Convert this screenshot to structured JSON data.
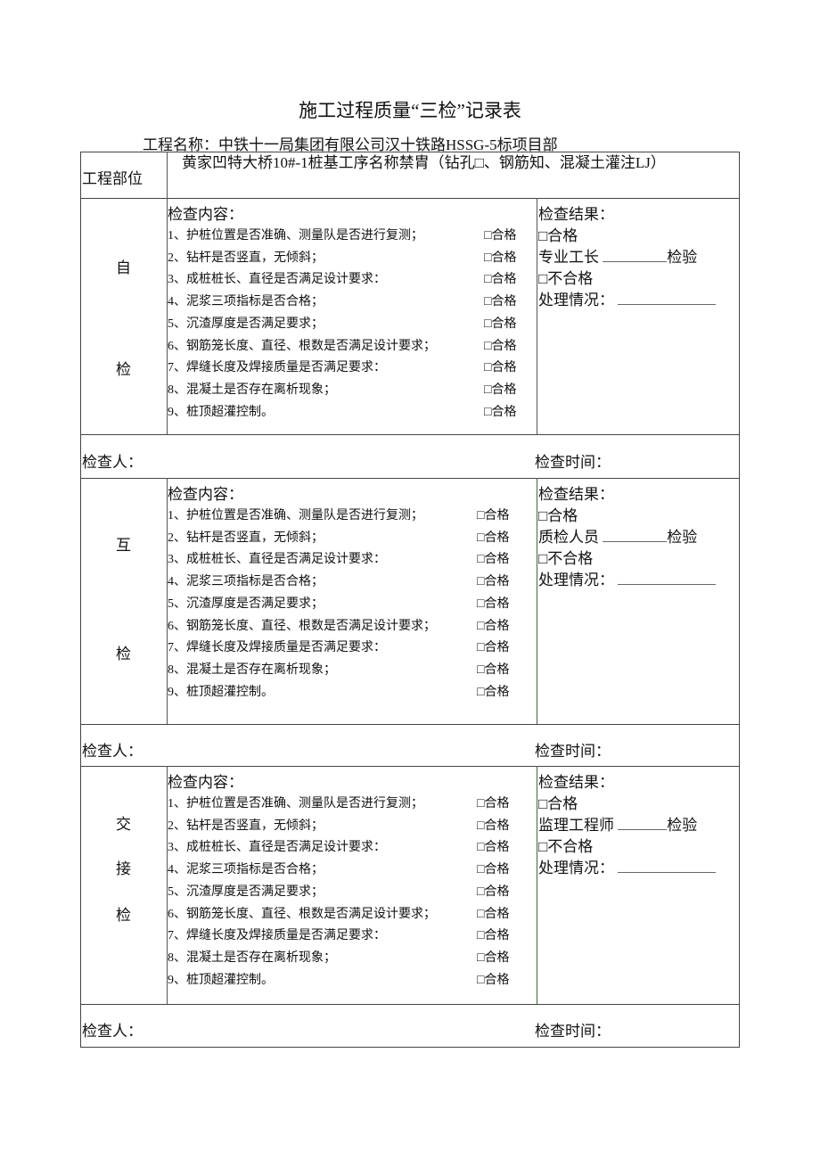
{
  "title": "施工过程质量“三检”记录表",
  "project_name": "工程名称：中铁十一局集团有限公司汉十铁路HSSG-5标项目部",
  "part_label": "工程部位",
  "part_value": "黄家凹特大桥10#-1桩基工序名称禁胄（钻孔□、钢筋知、混凝土灌注LJ）",
  "content_label": "检查内容：",
  "pass_label": "□合格",
  "items": [
    "1、护桩位置是否准确、测量队是否进行复测；",
    "2、钻杆是否竖直，无倾斜；",
    "3、成桩桩长、直径是否满足设计要求：",
    "4、泥浆三项指标是否合格；",
    "5、沉渣厚度是否满足要求；",
    "6、钢筋笼长度、直径、根数是否满足设计要求；",
    "7、焊缝长度及焊接质量是否满足要求：",
    "8、混凝土是否存在离析现象；",
    "9、桩顶超灌控制。"
  ],
  "result_label": "检查结果：",
  "result_pass": "□合格",
  "result_fail": "□不合格",
  "verify": "检验",
  "handling": "处理情况：",
  "inspector": "检查人：",
  "inspect_time": "检查时间：",
  "sections": [
    {
      "chars": [
        "自",
        "检"
      ],
      "role": "专业工长"
    },
    {
      "chars": [
        "互",
        "检"
      ],
      "role": "质检人员"
    },
    {
      "chars": [
        "交",
        "接",
        "检"
      ],
      "role": "监理工程师"
    }
  ]
}
